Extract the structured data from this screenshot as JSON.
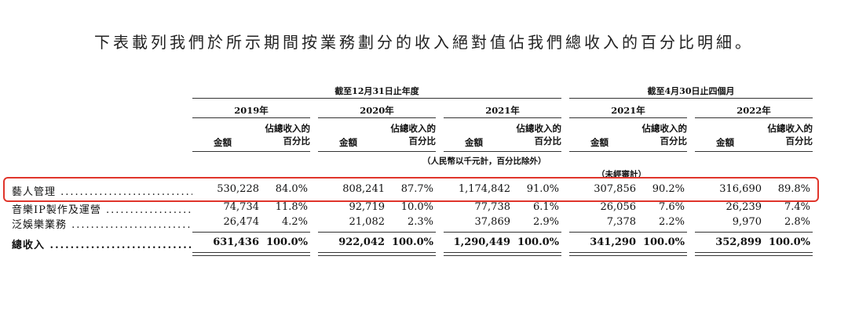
{
  "intro_text": "下表載列我們於所示期間按業務劃分的收入絕對值佔我們總收入的百分比明細。",
  "group_headers": {
    "year_end": "截至12月31日止年度",
    "four_months": "截至4月30日止四個月"
  },
  "years": [
    "2019年",
    "2020年",
    "2021年",
    "2021年",
    "2022年"
  ],
  "sub_headers": {
    "amount": "金額",
    "pct_line1": "佔總收入的",
    "pct_line2": "百分比"
  },
  "unit_note": "（人民幣以千元計，百分比除外）",
  "unaudited_note": "（未經審計）",
  "rows": [
    {
      "label": "藝人管理",
      "values": [
        "530,228",
        "84.0%",
        "808,241",
        "87.7%",
        "1,174,842",
        "91.0%",
        "307,856",
        "90.2%",
        "316,690",
        "89.8%"
      ],
      "highlighted": true
    },
    {
      "label": "音樂IP製作及運營",
      "values": [
        "74,734",
        "11.8%",
        "92,719",
        "10.0%",
        "77,738",
        "6.1%",
        "26,056",
        "7.6%",
        "26,239",
        "7.4%"
      ]
    },
    {
      "label": "泛娛樂業務",
      "values": [
        "26,474",
        "4.2%",
        "21,082",
        "2.3%",
        "37,869",
        "2.9%",
        "7,378",
        "2.2%",
        "9,970",
        "2.8%"
      ]
    },
    {
      "label": "總收入",
      "values": [
        "631,436",
        "100.0%",
        "922,042",
        "100.0%",
        "1,290,449",
        "100.0%",
        "341,290",
        "100.0%",
        "352,899",
        "100.0%"
      ],
      "total": true
    }
  ],
  "highlight_color": "#e0352b"
}
